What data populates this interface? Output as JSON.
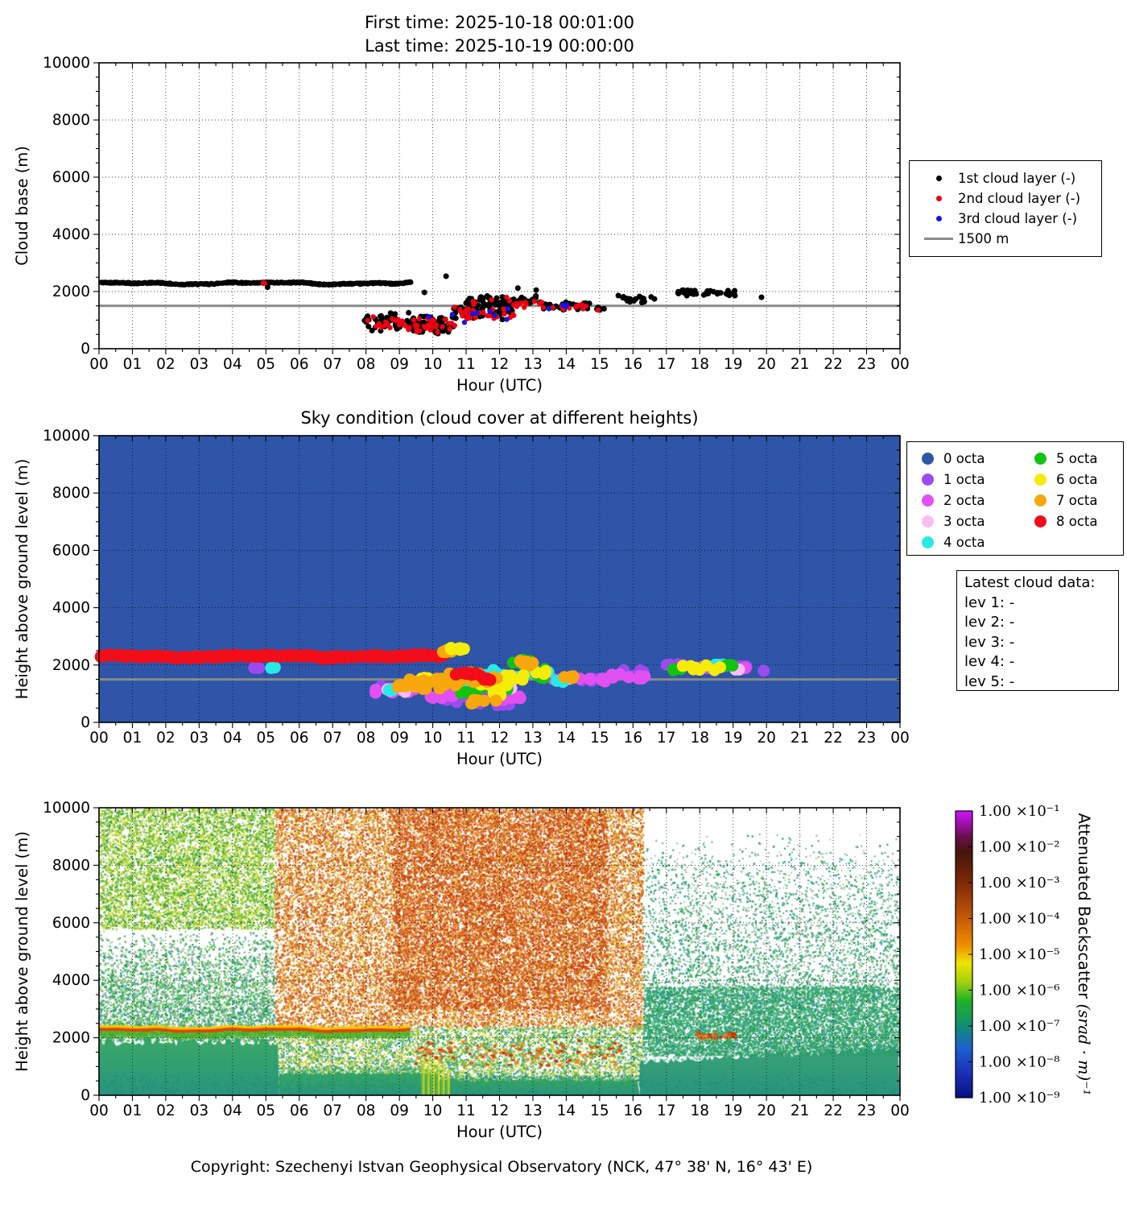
{
  "copyright": "Copyright: Szechenyi Istvan Geophysical Observatory (NCK, 47° 38' N, 16° 43' E)",
  "axes": {
    "hour_ticks": [
      "00",
      "01",
      "02",
      "03",
      "04",
      "05",
      "06",
      "07",
      "08",
      "09",
      "10",
      "11",
      "12",
      "13",
      "14",
      "15",
      "16",
      "17",
      "18",
      "19",
      "20",
      "21",
      "22",
      "23",
      "00"
    ],
    "height_ticks": [
      "0",
      "2000",
      "4000",
      "6000",
      "8000",
      "10000"
    ]
  },
  "chart_data": [
    {
      "type": "scatter",
      "panel": "cloud-base",
      "title_lines": [
        "First time: 2025-10-18 00:01:00",
        "Last time: 2025-10-19 00:00:00"
      ],
      "xlabel": "Hour (UTC)",
      "ylabel": "Cloud base (m)",
      "xlim": [
        0,
        24
      ],
      "ylim": [
        0,
        10000
      ],
      "refline": {
        "label": "1500 m",
        "value": 1500,
        "color": "#8a8a8a"
      },
      "legend": [
        {
          "label": "1st cloud layer (-)",
          "marker": "dot",
          "color": "#000000"
        },
        {
          "label": "2nd cloud layer (-)",
          "marker": "dot",
          "color": "#ee0011"
        },
        {
          "label": "3rd cloud layer (-)",
          "marker": "dot",
          "color": "#1414e8"
        },
        {
          "label": "1500 m",
          "marker": "line",
          "color": "#8a8a8a"
        }
      ],
      "series": [
        {
          "name": "1st cloud layer",
          "color": "#000000",
          "r": 3.5,
          "band": {
            "x0": 0.05,
            "x1": 9.35,
            "y": 2290,
            "wave": 55,
            "jitter": 28,
            "n": 620
          },
          "clusters": [
            [
              7.95,
              9.45,
              950,
              380,
              48
            ],
            [
              9.4,
              10.65,
              820,
              340,
              60
            ],
            [
              10.55,
              12.4,
              1320,
              330,
              70
            ],
            [
              11.0,
              13.25,
              1700,
              210,
              50
            ],
            [
              13.25,
              14.7,
              1500,
              170,
              36
            ],
            [
              14.85,
              15.15,
              1400,
              110,
              5
            ],
            [
              15.45,
              16.7,
              1750,
              160,
              20
            ],
            [
              17.3,
              19.15,
              1950,
              115,
              46
            ]
          ],
          "points": [
            [
              10.4,
              2535
            ],
            [
              9.75,
              1970
            ],
            [
              19.85,
              1800
            ],
            [
              5.05,
              2150
            ],
            [
              12.55,
              2120
            ],
            [
              13.1,
              2050
            ]
          ]
        },
        {
          "name": "2nd cloud layer",
          "color": "#ee0011",
          "r": 3.2,
          "clusters": [
            [
              4.9,
              5.05,
              2290,
              40,
              3
            ],
            [
              8.0,
              9.45,
              880,
              300,
              22
            ],
            [
              9.45,
              10.7,
              780,
              300,
              26
            ],
            [
              10.6,
              12.45,
              1280,
              300,
              30
            ],
            [
              11.2,
              13.3,
              1620,
              190,
              16
            ],
            [
              13.3,
              14.6,
              1470,
              140,
              12
            ]
          ],
          "points": [
            [
              14.95,
              1350
            ]
          ]
        },
        {
          "name": "3rd cloud layer",
          "color": "#1414e8",
          "r": 3.2,
          "clusters": [
            [
              9.8,
              12.3,
              1280,
              330,
              8
            ],
            [
              12.8,
              14.5,
              1460,
              140,
              4
            ]
          ],
          "points": [
            [
              10.95,
              920
            ]
          ]
        }
      ]
    },
    {
      "type": "scatter",
      "panel": "sky-condition",
      "title": "Sky condition (cloud cover at different heights)",
      "xlabel": "Hour (UTC)",
      "ylabel": "Height above ground level (m)",
      "xlim": [
        0,
        24
      ],
      "ylim": [
        0,
        10000
      ],
      "background": "#2e55a8",
      "refline": {
        "value": 1500,
        "color": "#8a8a8a"
      },
      "legend": [
        {
          "label": "0 octa",
          "color": "#2e55a8"
        },
        {
          "label": "1 octa",
          "color": "#9b4af0"
        },
        {
          "label": "2 octa",
          "color": "#e250f2"
        },
        {
          "label": "3 octa",
          "color": "#fbbcf5"
        },
        {
          "label": "4 octa",
          "color": "#26eae6"
        },
        {
          "label": "5 octa",
          "color": "#12c312"
        },
        {
          "label": "6 octa",
          "color": "#f6ec0a"
        },
        {
          "label": "7 octa",
          "color": "#f8a70c"
        },
        {
          "label": "8 octa",
          "color": "#f20d18"
        }
      ],
      "info_box": {
        "title": "Latest cloud data:",
        "lines": [
          "lev 1: -",
          "lev 2: -",
          "lev 3: -",
          "lev 4: -",
          "lev 5: -"
        ]
      },
      "band": {
        "octa": 8,
        "x0": 0.05,
        "x1": 10.35,
        "y": 2300,
        "wave": 60,
        "jitter": 40,
        "n": 175
      },
      "clusters": [
        {
          "octa": 1,
          "c": [
            [
              4.65,
              4.85,
              1900,
              40,
              2
            ],
            [
              8.2,
              9.05,
              1230,
              160,
              6
            ],
            [
              10.2,
              11.65,
              820,
              200,
              9
            ],
            [
              11.7,
              12.35,
              680,
              110,
              5
            ],
            [
              14.4,
              15.05,
              1460,
              70,
              4
            ],
            [
              15.7,
              16.65,
              1720,
              130,
              6
            ],
            [
              16.9,
              17.65,
              1960,
              90,
              6
            ],
            [
              19.1,
              19.5,
              1900,
              80,
              4
            ],
            [
              19.8,
              19.95,
              1800,
              30,
              1
            ]
          ]
        },
        {
          "octa": 2,
          "c": [
            [
              8.0,
              9.65,
              1150,
              130,
              13
            ],
            [
              9.8,
              10.65,
              880,
              160,
              8
            ],
            [
              11.9,
              12.65,
              820,
              130,
              6
            ],
            [
              13.35,
              15.25,
              1490,
              80,
              12
            ],
            [
              15.3,
              16.45,
              1620,
              110,
              8
            ],
            [
              17.85,
              18.3,
              1950,
              70,
              4
            ],
            [
              19.0,
              19.45,
              1900,
              60,
              3
            ]
          ]
        },
        {
          "octa": 3,
          "c": [
            [
              8.6,
              9.25,
              1150,
              90,
              4
            ],
            [
              13.75,
              14.1,
              1500,
              50,
              2
            ],
            [
              12.1,
              12.45,
              1200,
              70,
              2
            ],
            [
              18.9,
              19.2,
              1870,
              50,
              2
            ]
          ]
        },
        {
          "octa": 4,
          "c": [
            [
              5.1,
              5.3,
              1890,
              40,
              2
            ],
            [
              8.55,
              8.9,
              1120,
              70,
              3
            ],
            [
              10.85,
              11.55,
              1200,
              160,
              7
            ],
            [
              11.6,
              12.55,
              1620,
              240,
              9
            ],
            [
              12.9,
              13.65,
              1720,
              150,
              6
            ],
            [
              13.6,
              14.05,
              1430,
              90,
              4
            ],
            [
              18.35,
              19.0,
              2010,
              70,
              5
            ]
          ]
        },
        {
          "octa": 5,
          "c": [
            [
              10.85,
              11.35,
              1050,
              110,
              5
            ],
            [
              11.5,
              12.35,
              1320,
              210,
              9
            ],
            [
              12.4,
              12.95,
              2120,
              90,
              5
            ],
            [
              12.95,
              13.45,
              1650,
              280,
              5
            ],
            [
              17.2,
              17.55,
              1850,
              60,
              3
            ],
            [
              18.7,
              19.05,
              1950,
              60,
              3
            ]
          ]
        },
        {
          "octa": 6,
          "c": [
            [
              9.3,
              10.35,
              1430,
              130,
              12
            ],
            [
              11.25,
              12.25,
              1350,
              170,
              10
            ],
            [
              12.15,
              12.75,
              1600,
              160,
              7
            ],
            [
              13.0,
              13.4,
              1750,
              120,
              4
            ],
            [
              11.75,
              12.15,
              950,
              90,
              4
            ],
            [
              17.4,
              18.65,
              1900,
              90,
              9
            ]
          ]
        },
        {
          "octa": 7,
          "c": [
            [
              8.95,
              10.45,
              1350,
              230,
              22
            ],
            [
              10.5,
              12.05,
              1520,
              260,
              20
            ],
            [
              12.6,
              13.15,
              2080,
              120,
              7
            ],
            [
              13.9,
              14.3,
              1600,
              90,
              4
            ],
            [
              11.1,
              11.9,
              750,
              150,
              6
            ]
          ]
        },
        {
          "octa": 8,
          "c": [
            [
              10.65,
              11.45,
              1650,
              120,
              9
            ],
            [
              11.35,
              11.75,
              1500,
              80,
              4
            ]
          ]
        }
      ],
      "post_band": [
        {
          "octa": 7,
          "c": [
            [
              10.3,
              10.65,
              2480,
              60,
              5
            ]
          ]
        },
        {
          "octa": 6,
          "c": [
            [
              10.45,
              10.95,
              2560,
              70,
              7
            ]
          ]
        }
      ]
    },
    {
      "type": "heatmap",
      "panel": "backscatter",
      "xlabel": "Hour (UTC)",
      "ylabel": "Height above ground level (m)",
      "xlim": [
        0,
        24
      ],
      "ylim": [
        0,
        10000
      ],
      "colorbar": {
        "title_main": "Attenuated Backscatter",
        "title_unit": "(srad · m)⁻¹",
        "tick_labels": [
          "1.00 ×10⁻¹",
          "1.00 ×10⁻²",
          "1.00 ×10⁻³",
          "1.00 ×10⁻⁴",
          "1.00 ×10⁻⁵",
          "1.00 ×10⁻⁶",
          "1.00 ×10⁻⁷",
          "1.00 ×10⁻⁸",
          "1.00 ×10⁻⁹"
        ],
        "stops": [
          [
            "0",
            "#d012ff"
          ],
          [
            "0.09",
            "#69104e"
          ],
          [
            "0.14",
            "#46140c"
          ],
          [
            "0.25",
            "#7c2a06"
          ],
          [
            "0.37",
            "#c45708"
          ],
          [
            "0.47",
            "#ef8f00"
          ],
          [
            "0.53",
            "#f0e400"
          ],
          [
            "0.6",
            "#9ed010"
          ],
          [
            "0.66",
            "#22b224"
          ],
          [
            "0.75",
            "#108e74"
          ],
          [
            "0.83",
            "#1d5fd0"
          ],
          [
            "0.92",
            "#1a2cb4"
          ],
          [
            "1",
            "#071280"
          ]
        ]
      },
      "features": {
        "speckle_regions": [
          {
            "x": [
              0,
              5.25
            ],
            "y": [
              5800,
              10000
            ],
            "colors": [
              "#b7d22b",
              "#d4dc2a",
              "#53b434",
              "#2f9e44",
              "#8cc832"
            ],
            "n": 7000
          },
          {
            "x": [
              0,
              5.25
            ],
            "y": [
              1900,
              5800
            ],
            "colors": [
              "#2f9e44",
              "#2a9d8f",
              "#57c84d",
              "#aab8a8"
            ],
            "n": 7000,
            "fade": "up"
          },
          {
            "x": [
              5.25,
              16.3
            ],
            "y": [
              2400,
              10000
            ],
            "colors": [
              "#d2601a",
              "#c74912",
              "#e07b2d",
              "#d9a02c",
              "#e8c83c"
            ],
            "n": 26000
          },
          {
            "x": [
              8.8,
              15.2
            ],
            "y": [
              3000,
              10000
            ],
            "colors": [
              "#d2601a",
              "#c74912",
              "#e07b2d",
              "#cc3808"
            ],
            "n": 9000
          },
          {
            "x": [
              5.25,
              16.3
            ],
            "y": [
              300,
              2400
            ],
            "colors": [
              "#ded542",
              "#a4c438",
              "#4caf50",
              "#2a9d8f"
            ],
            "n": 7000
          },
          {
            "x": [
              16.3,
              24
            ],
            "y": [
              1400,
              9200
            ],
            "colors": [
              "#2f9e54",
              "#2a9d8f",
              "#3cb371",
              "#9cb89c"
            ],
            "n": 9000,
            "fade": "up"
          },
          {
            "x": [
              16.3,
              24
            ],
            "y": [
              1400,
              3800
            ],
            "colors": [
              "#2f9e54",
              "#2a9d8f",
              "#3cb371"
            ],
            "n": 6500
          },
          {
            "x": [
              0,
              24
            ],
            "y": [
              0,
              700
            ],
            "colors": [
              "#2b55cc",
              "#3366dd"
            ],
            "n": 900
          }
        ],
        "ground_layers": [
          {
            "x": [
              0,
              5.4
            ],
            "top": 1850,
            "colors": [
              "#2fa362",
              "#1e8f77"
            ]
          },
          {
            "x": [
              5.4,
              10.2
            ],
            "top": 760,
            "colors": [
              "#2fa362",
              "#1e8f77"
            ]
          },
          {
            "x": [
              10.2,
              16.2
            ],
            "top": 520,
            "colors": [
              "#2fa362",
              "#1e8f77"
            ]
          },
          {
            "x": [
              16.2,
              24
            ],
            "top": 1150,
            "top2": 1650,
            "colors": [
              "#2f9e6e",
              "#1e8f77"
            ]
          }
        ],
        "cloud_line": {
          "x0": 0,
          "x1": 9.3,
          "y": 2320,
          "wave": 55,
          "core": "#e04800",
          "fringe": "#f5c800",
          "under": "#46b020"
        },
        "orange_scatter": [
          {
            "x": [
              9.45,
              15.6
            ],
            "y": 1450,
            "dy": 520,
            "n": 120
          },
          {
            "x": [
              17.7,
              19.05
            ],
            "y": 2120,
            "dy": 130,
            "n": 36
          }
        ],
        "yellow_streaks": [
          [
            9.7,
            1250
          ],
          [
            9.85,
            1350
          ],
          [
            10.0,
            1300
          ],
          [
            10.15,
            1250
          ],
          [
            10.3,
            1100
          ],
          [
            10.45,
            900
          ]
        ]
      }
    }
  ]
}
